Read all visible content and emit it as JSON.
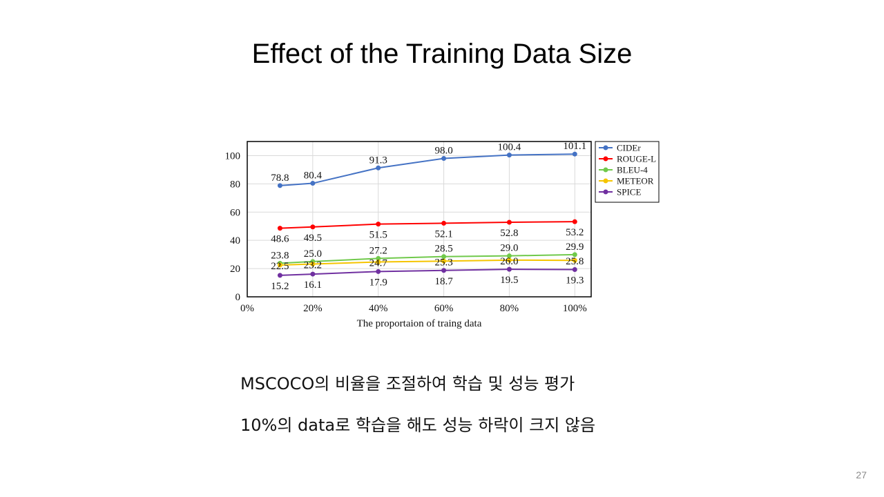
{
  "slide": {
    "title": "Effect of the Training Data Size",
    "bullets": [
      "MSCOCO의 비율을 조절하여 학습 및 성능 평가",
      "10%의 data로 학습을 해도 성능 하락이 크지 않음"
    ],
    "page_number": "27"
  },
  "chart_data": {
    "type": "line",
    "xlabel": "The proportaion of traing data",
    "ylabel": "",
    "x_tick_labels": [
      "0%",
      "20%",
      "40%",
      "60%",
      "80%",
      "100%"
    ],
    "x_tick_values": [
      0,
      20,
      40,
      60,
      80,
      100
    ],
    "xlim": [
      0,
      105
    ],
    "y_tick_labels": [
      "0",
      "20",
      "40",
      "60",
      "80",
      "100"
    ],
    "y_tick_values": [
      0,
      20,
      40,
      60,
      80,
      100
    ],
    "ylim": [
      0,
      110
    ],
    "grid": true,
    "legend_position": "right",
    "x": [
      10,
      20,
      40,
      60,
      80,
      100
    ],
    "series": [
      {
        "name": "CIDEr",
        "color": "#4472C4",
        "values": [
          78.8,
          80.4,
          91.3,
          98.0,
          100.4,
          101.1
        ],
        "labels": [
          "78.8",
          "80.4",
          "91.3",
          "98.0",
          "100.4",
          "101.1"
        ],
        "label_side": "above"
      },
      {
        "name": "ROUGE-L",
        "color": "#FF0000",
        "values": [
          48.6,
          49.5,
          51.5,
          52.1,
          52.8,
          53.2
        ],
        "labels": [
          "48.6",
          "49.5",
          "51.5",
          "52.1",
          "52.8",
          "53.2"
        ],
        "label_side": "below"
      },
      {
        "name": "BLEU-4",
        "color": "#70C94B",
        "values": [
          23.8,
          25.0,
          27.2,
          28.5,
          29.0,
          29.9
        ],
        "labels": [
          "23.8",
          "25.0",
          "27.2",
          "28.5",
          "29.0",
          "29.9"
        ],
        "label_side": "above"
      },
      {
        "name": "METEOR",
        "color": "#F5C400",
        "values": [
          22.5,
          23.2,
          24.7,
          25.3,
          26.0,
          25.8
        ],
        "labels": [
          "22.5",
          "23.2",
          "24.7",
          "25.3",
          "26.0",
          "25.8"
        ],
        "label_side": "center"
      },
      {
        "name": "SPICE",
        "color": "#7030A0",
        "values": [
          15.2,
          16.1,
          17.9,
          18.7,
          19.5,
          19.3
        ],
        "labels": [
          "15.2",
          "16.1",
          "17.9",
          "18.7",
          "19.5",
          "19.3"
        ],
        "label_side": "below"
      }
    ]
  }
}
